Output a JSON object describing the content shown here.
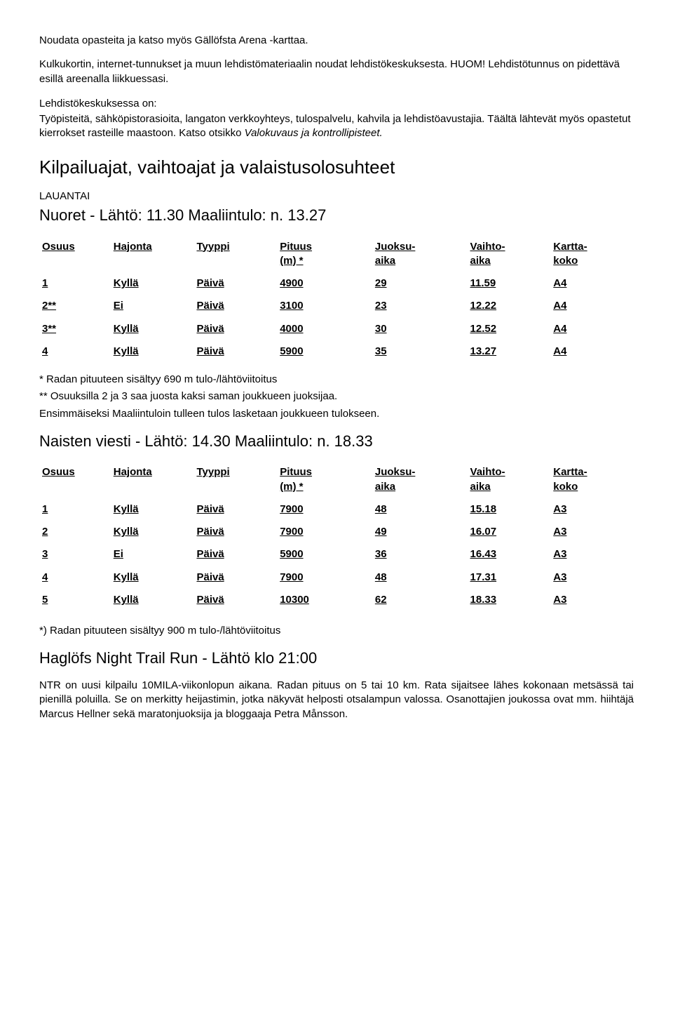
{
  "intro": {
    "p1": "Noudata opasteita ja katso myös Gällöfsta Arena -karttaa.",
    "p2": "Kulkukortin, internet-tunnukset ja muun lehdistömateriaalin noudat lehdistökeskuksesta. HUOM! Lehdistötunnus on pidettävä esillä areenalla liikkuessasi.",
    "label": "Lehdistökeskuksessa on:",
    "p3": "Työpisteitä, sähköpistorasioita, langaton verkkoyhteys, tulospalvelu, kahvila ja lehdistöavustajia. Täältä lähtevät myös opastetut kierrokset rasteille maastoon. Katso otsikko Valokuvaus ja kontrollipisteet."
  },
  "heading": "Kilpailuajat, vaihtoajat ja valaistusolosuhteet",
  "columns": {
    "osuus": "Osuus",
    "hajonta": "Hajonta",
    "tyyppi": "Tyyppi",
    "pituus_l1": "Pituus",
    "pituus_l2": "(m) *",
    "juoksu_l1": "Juoksu-",
    "juoksu_l2": "aika",
    "vaihto_l1": "Vaihto-",
    "vaihto_l2": "aika",
    "kartta_l1": "Kartta-",
    "kartta_l2": "koko"
  },
  "nuoret": {
    "day": "LAUANTAI",
    "title": "Nuoret - Lähtö: 11.30  Maaliintulo: n. 13.27",
    "rows": [
      {
        "osuus": "1",
        "hajonta": "Kyllä",
        "tyyppi": "Päivä",
        "pituus": "4900",
        "juoksu": "29",
        "vaihto": "11.59",
        "kartta": "A4"
      },
      {
        "osuus": "2**",
        "hajonta": "Ei",
        "tyyppi": "Päivä",
        "pituus": "3100",
        "juoksu": "23",
        "vaihto": "12.22",
        "kartta": "A4"
      },
      {
        "osuus": "3**",
        "hajonta": "Kyllä",
        "tyyppi": "Päivä",
        "pituus": "4000",
        "juoksu": "30",
        "vaihto": "12.52",
        "kartta": "A4"
      },
      {
        "osuus": "4",
        "hajonta": "Kyllä",
        "tyyppi": "Päivä",
        "pituus": "5900",
        "juoksu": "35",
        "vaihto": "13.27",
        "kartta": "A4"
      }
    ],
    "note1": "* Radan pituuteen sisältyy 690 m tulo-/lähtöviitoitus",
    "note2": "** Osuuksilla 2 ja 3 saa juosta kaksi saman joukkueen juoksijaa.",
    "note3": "Ensimmäiseksi Maaliintuloin tulleen tulos lasketaan joukkueen tulokseen."
  },
  "naiset": {
    "title": "Naisten viesti - Lähtö: 14.30  Maaliintulo: n. 18.33",
    "rows": [
      {
        "osuus": "1",
        "hajonta": "Kyllä",
        "tyyppi": "Päivä",
        "pituus": "7900",
        "juoksu": "48",
        "vaihto": "15.18",
        "kartta": "A3"
      },
      {
        "osuus": "2",
        "hajonta": "Kyllä",
        "tyyppi": "Päivä",
        "pituus": "7900",
        "juoksu": "49",
        "vaihto": "16.07",
        "kartta": "A3"
      },
      {
        "osuus": "3",
        "hajonta": "Ei",
        "tyyppi": "Päivä",
        "pituus": "5900",
        "juoksu": "36",
        "vaihto": "16.43",
        "kartta": "A3"
      },
      {
        "osuus": "4",
        "hajonta": "Kyllä",
        "tyyppi": "Päivä",
        "pituus": "7900",
        "juoksu": "48",
        "vaihto": "17.31",
        "kartta": "A3"
      },
      {
        "osuus": "5",
        "hajonta": "Kyllä",
        "tyyppi": "Päivä",
        "pituus": "10300",
        "juoksu": "62",
        "vaihto": "18.33",
        "kartta": "A3"
      }
    ],
    "note1": "*) Radan pituuteen sisältyy 900 m tulo-/lähtöviitoitus"
  },
  "nighttrail": {
    "title": "Haglöfs Night Trail Run - Lähtö klo 21:00",
    "body": "NTR on uusi kilpailu 10MILA-viikonlopun aikana. Radan pituus on 5 tai 10 km. Rata sijaitsee lähes kokonaan metsässä tai pienillä poluilla. Se on merkitty heijastimin, jotka näkyvät helposti otsalampun valossa. Osanottajien joukossa ovat mm. hiihtäjä Marcus Hellner sekä maratonjuoksija ja bloggaaja Petra Månsson."
  }
}
